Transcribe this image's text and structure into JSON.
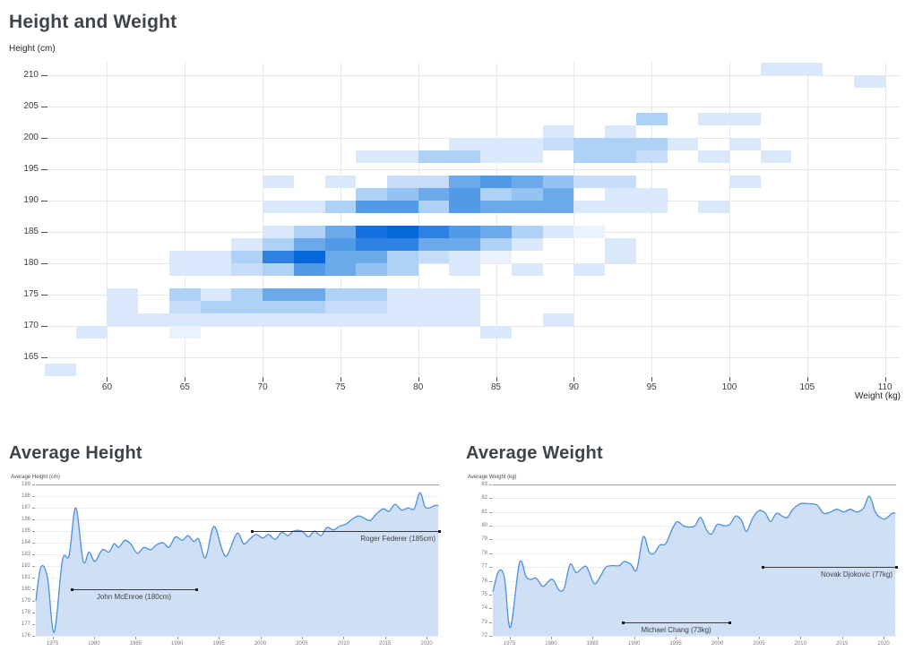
{
  "page_title": "Height and Weight",
  "accent_color": "#4a90e2",
  "chart_data": [
    {
      "type": "heatmap",
      "title": "Height and Weight",
      "xlabel": "Weight (kg)",
      "ylabel": "Height (cm)",
      "x_ticks": [
        60,
        65,
        70,
        75,
        80,
        85,
        90,
        95,
        100,
        105,
        110
      ],
      "y_ticks": [
        165,
        170,
        175,
        180,
        185,
        190,
        195,
        200,
        205,
        210
      ],
      "x_domain": [
        56,
        111
      ],
      "y_domain": [
        162,
        212
      ],
      "bin_size": {
        "weight_kg": 2,
        "height_cm": 2
      },
      "palette": {
        "0.5": "#e9f2fd",
        "1": "#d9e9fb",
        "1.5": "#c6dcf8",
        "2": "#aed2f5",
        "2.5": "#95c3f1",
        "3": "#6ca9ea",
        "3.5": "#519ae8",
        "4": "#2e80e2",
        "4.5": "#1371de",
        "5": "#0568da"
      },
      "cells": [
        [
          210,
          102,
          1
        ],
        [
          210,
          104,
          1
        ],
        [
          208,
          108,
          1
        ],
        [
          202,
          94,
          2
        ],
        [
          202,
          98,
          1
        ],
        [
          202,
          100,
          1
        ],
        [
          200,
          88,
          1
        ],
        [
          200,
          92,
          1
        ],
        [
          198,
          82,
          1
        ],
        [
          198,
          84,
          1
        ],
        [
          198,
          86,
          1
        ],
        [
          198,
          88,
          1.5
        ],
        [
          198,
          90,
          2
        ],
        [
          198,
          92,
          2
        ],
        [
          198,
          94,
          2
        ],
        [
          198,
          96,
          1
        ],
        [
          198,
          100,
          1
        ],
        [
          196,
          76,
          1
        ],
        [
          196,
          78,
          1
        ],
        [
          196,
          80,
          2
        ],
        [
          196,
          82,
          2
        ],
        [
          196,
          84,
          1
        ],
        [
          196,
          86,
          1
        ],
        [
          196,
          90,
          2
        ],
        [
          196,
          92,
          2
        ],
        [
          196,
          94,
          1.5
        ],
        [
          196,
          98,
          1
        ],
        [
          196,
          102,
          1
        ],
        [
          192,
          70,
          1
        ],
        [
          192,
          74,
          1
        ],
        [
          192,
          78,
          1.5
        ],
        [
          192,
          80,
          1.5
        ],
        [
          192,
          82,
          3
        ],
        [
          192,
          84,
          3.5
        ],
        [
          192,
          86,
          3
        ],
        [
          192,
          88,
          2.5
        ],
        [
          192,
          90,
          1.5
        ],
        [
          192,
          92,
          1.5
        ],
        [
          192,
          100,
          1
        ],
        [
          190,
          76,
          2
        ],
        [
          190,
          78,
          2.5
        ],
        [
          190,
          80,
          3
        ],
        [
          190,
          82,
          3.5
        ],
        [
          190,
          84,
          2
        ],
        [
          190,
          86,
          2.5
        ],
        [
          190,
          88,
          3
        ],
        [
          190,
          92,
          1
        ],
        [
          190,
          94,
          1
        ],
        [
          188,
          70,
          1
        ],
        [
          188,
          72,
          1
        ],
        [
          188,
          74,
          2
        ],
        [
          188,
          76,
          3.5
        ],
        [
          188,
          78,
          3.5
        ],
        [
          188,
          80,
          2
        ],
        [
          188,
          82,
          3.5
        ],
        [
          188,
          84,
          3
        ],
        [
          188,
          86,
          3
        ],
        [
          188,
          88,
          3
        ],
        [
          188,
          90,
          1
        ],
        [
          188,
          92,
          1
        ],
        [
          188,
          94,
          1
        ],
        [
          188,
          98,
          1
        ],
        [
          184,
          70,
          1
        ],
        [
          184,
          72,
          2
        ],
        [
          184,
          74,
          3
        ],
        [
          184,
          76,
          4.5
        ],
        [
          184,
          78,
          5
        ],
        [
          184,
          80,
          4
        ],
        [
          184,
          82,
          3.5
        ],
        [
          184,
          84,
          3
        ],
        [
          184,
          86,
          2
        ],
        [
          184,
          88,
          1
        ],
        [
          184,
          90,
          0.5
        ],
        [
          182,
          68,
          1
        ],
        [
          182,
          70,
          2
        ],
        [
          182,
          72,
          3
        ],
        [
          182,
          74,
          3.5
        ],
        [
          182,
          76,
          4
        ],
        [
          182,
          78,
          4
        ],
        [
          182,
          80,
          3
        ],
        [
          182,
          82,
          3
        ],
        [
          182,
          84,
          2
        ],
        [
          182,
          86,
          1
        ],
        [
          182,
          92,
          1
        ],
        [
          180,
          64,
          1
        ],
        [
          180,
          66,
          1
        ],
        [
          180,
          68,
          2
        ],
        [
          180,
          70,
          4
        ],
        [
          180,
          72,
          5
        ],
        [
          180,
          74,
          3
        ],
        [
          180,
          76,
          3
        ],
        [
          180,
          78,
          2
        ],
        [
          180,
          80,
          1.5
        ],
        [
          180,
          82,
          1
        ],
        [
          180,
          84,
          0.5
        ],
        [
          180,
          92,
          1
        ],
        [
          178,
          64,
          1
        ],
        [
          178,
          66,
          1
        ],
        [
          178,
          68,
          1.5
        ],
        [
          178,
          70,
          2
        ],
        [
          178,
          72,
          3.5
        ],
        [
          178,
          74,
          3
        ],
        [
          178,
          76,
          2.5
        ],
        [
          178,
          78,
          2
        ],
        [
          178,
          82,
          1
        ],
        [
          178,
          86,
          1
        ],
        [
          178,
          90,
          1
        ],
        [
          174,
          60,
          1
        ],
        [
          174,
          64,
          2
        ],
        [
          174,
          66,
          1
        ],
        [
          174,
          68,
          2
        ],
        [
          174,
          70,
          3
        ],
        [
          174,
          72,
          3
        ],
        [
          174,
          74,
          2
        ],
        [
          174,
          76,
          2
        ],
        [
          174,
          78,
          1
        ],
        [
          174,
          80,
          1
        ],
        [
          174,
          82,
          1
        ],
        [
          172,
          60,
          1
        ],
        [
          172,
          64,
          1.5
        ],
        [
          172,
          66,
          2
        ],
        [
          172,
          68,
          2
        ],
        [
          172,
          70,
          2
        ],
        [
          172,
          72,
          2
        ],
        [
          172,
          74,
          1.5
        ],
        [
          172,
          76,
          1.5
        ],
        [
          172,
          78,
          1
        ],
        [
          172,
          80,
          1
        ],
        [
          172,
          82,
          1
        ],
        [
          170,
          60,
          1
        ],
        [
          170,
          62,
          1
        ],
        [
          170,
          64,
          1
        ],
        [
          170,
          66,
          1
        ],
        [
          170,
          68,
          1
        ],
        [
          170,
          70,
          1
        ],
        [
          170,
          72,
          1
        ],
        [
          170,
          74,
          1
        ],
        [
          170,
          76,
          1
        ],
        [
          170,
          78,
          1
        ],
        [
          170,
          80,
          1
        ],
        [
          170,
          82,
          1
        ],
        [
          170,
          88,
          1
        ],
        [
          168,
          58,
          1
        ],
        [
          168,
          64,
          0.5
        ],
        [
          168,
          84,
          1
        ],
        [
          162,
          56,
          1
        ]
      ]
    },
    {
      "type": "area",
      "title": "Average Height",
      "ylabel": "Average Height (cm)",
      "y_ticks": [
        189,
        188,
        187,
        186,
        185,
        184,
        183,
        182,
        181,
        180,
        179,
        178,
        177,
        176
      ],
      "x_ticks": [
        1975,
        1980,
        1985,
        1990,
        1995,
        2000,
        2005,
        2010,
        2015,
        2020
      ],
      "y_domain": [
        176,
        189
      ],
      "x_domain": [
        1973,
        2021.5
      ],
      "line_color": "#4a90e2",
      "fill_color": "#cfe0f6",
      "series": [
        [
          1973,
          179.0
        ],
        [
          1973.6,
          181.9
        ],
        [
          1974.4,
          181.0
        ],
        [
          1975.2,
          176.3
        ],
        [
          1976.2,
          182.5
        ],
        [
          1977,
          182.9
        ],
        [
          1977.8,
          187.0
        ],
        [
          1978.7,
          182.4
        ],
        [
          1979.4,
          183.2
        ],
        [
          1980.1,
          182.4
        ],
        [
          1981,
          183.4
        ],
        [
          1981.8,
          183.2
        ],
        [
          1982.4,
          183.9
        ],
        [
          1983,
          183.6
        ],
        [
          1983.7,
          184.2
        ],
        [
          1984.4,
          183.9
        ],
        [
          1985.2,
          183.1
        ],
        [
          1986,
          183.6
        ],
        [
          1986.8,
          183.4
        ],
        [
          1987.5,
          183.8
        ],
        [
          1988.3,
          184.0
        ],
        [
          1989,
          183.6
        ],
        [
          1989.8,
          184.5
        ],
        [
          1990.6,
          184.2
        ],
        [
          1991.3,
          184.6
        ],
        [
          1992,
          184.1
        ],
        [
          1992.6,
          184.3
        ],
        [
          1993.4,
          182.7
        ],
        [
          1994.4,
          185.4
        ],
        [
          1995.4,
          183.4
        ],
        [
          1996,
          182.9
        ],
        [
          1997.2,
          184.8
        ],
        [
          1998,
          183.9
        ],
        [
          1998.7,
          184.3
        ],
        [
          1999.5,
          184.7
        ],
        [
          2000.3,
          184.4
        ],
        [
          2001,
          184.7
        ],
        [
          2001.8,
          184.3
        ],
        [
          2002.6,
          184.9
        ],
        [
          2003.3,
          184.6
        ],
        [
          2004,
          185.0
        ],
        [
          2005,
          185.0
        ],
        [
          2005.8,
          184.5
        ],
        [
          2006.5,
          185.0
        ],
        [
          2007.3,
          184.6
        ],
        [
          2008,
          185.3
        ],
        [
          2008.8,
          185.1
        ],
        [
          2009.5,
          185.4
        ],
        [
          2010.3,
          185.6
        ],
        [
          2011,
          186.0
        ],
        [
          2011.8,
          186.3
        ],
        [
          2012.5,
          186.1
        ],
        [
          2013.2,
          185.9
        ],
        [
          2014,
          186.5
        ],
        [
          2014.8,
          186.9
        ],
        [
          2015.5,
          186.7
        ],
        [
          2016.2,
          187.3
        ],
        [
          2017,
          186.8
        ],
        [
          2017.8,
          187.0
        ],
        [
          2018.5,
          186.9
        ],
        [
          2019.2,
          188.3
        ],
        [
          2019.8,
          187.1
        ],
        [
          2020.4,
          187.0
        ],
        [
          2021,
          187.2
        ],
        [
          2021.4,
          187.2
        ]
      ],
      "annotations": [
        {
          "label": "John McEnroe (180cm)",
          "value": 180,
          "start": 1977.3,
          "end": 1992.3,
          "label_align": "center"
        },
        {
          "label": "Roger Federer (185cm)",
          "value": 185,
          "start": 1999,
          "end": 2021.5,
          "label_align": "right"
        }
      ]
    },
    {
      "type": "area",
      "title": "Average Weight",
      "ylabel": "Average Weight (kg)",
      "y_ticks": [
        83,
        82,
        81,
        80,
        79,
        78,
        77,
        76,
        75,
        74,
        73,
        72
      ],
      "x_ticks": [
        1975,
        1980,
        1985,
        1990,
        1995,
        2000,
        2005,
        2010,
        2015,
        2020
      ],
      "y_domain": [
        72,
        83
      ],
      "x_domain": [
        1973,
        2021.5
      ],
      "line_color": "#4a90e2",
      "fill_color": "#cfe0f6",
      "series": [
        [
          1973,
          75.2
        ],
        [
          1973.7,
          76.7
        ],
        [
          1974.4,
          76.2
        ],
        [
          1975.1,
          72.6
        ],
        [
          1976.2,
          77.3
        ],
        [
          1977,
          76.3
        ],
        [
          1977.6,
          76.1
        ],
        [
          1978.2,
          76.2
        ],
        [
          1979,
          75.6
        ],
        [
          1979.6,
          75.9
        ],
        [
          1980.2,
          76.1
        ],
        [
          1981,
          75.3
        ],
        [
          1981.6,
          75.5
        ],
        [
          1982.3,
          77.2
        ],
        [
          1983,
          76.6
        ],
        [
          1983.7,
          76.9
        ],
        [
          1984.3,
          77.0
        ],
        [
          1985.2,
          75.8
        ],
        [
          1986,
          76.4
        ],
        [
          1986.6,
          77.0
        ],
        [
          1987.4,
          77.1
        ],
        [
          1988.2,
          77.1
        ],
        [
          1988.8,
          77.4
        ],
        [
          1989.6,
          77.2
        ],
        [
          1990.3,
          76.8
        ],
        [
          1991.1,
          79.2
        ],
        [
          1991.8,
          78.1
        ],
        [
          1992.4,
          78.0
        ],
        [
          1993.1,
          78.6
        ],
        [
          1993.8,
          78.7
        ],
        [
          1994.6,
          79.8
        ],
        [
          1995.2,
          80.3
        ],
        [
          1995.9,
          80.0
        ],
        [
          1996.6,
          79.9
        ],
        [
          1997.3,
          80.0
        ],
        [
          1998,
          80.6
        ],
        [
          1998.7,
          79.7
        ],
        [
          1999.3,
          79.4
        ],
        [
          2000,
          80.1
        ],
        [
          2000.8,
          80.0
        ],
        [
          2001.5,
          80.1
        ],
        [
          2002.2,
          80.7
        ],
        [
          2002.9,
          80.4
        ],
        [
          2003.5,
          79.6
        ],
        [
          2004.2,
          80.5
        ],
        [
          2005,
          81.1
        ],
        [
          2005.8,
          80.9
        ],
        [
          2006.4,
          80.3
        ],
        [
          2007.1,
          80.9
        ],
        [
          2007.8,
          80.7
        ],
        [
          2008.4,
          80.6
        ],
        [
          2009.1,
          81.2
        ],
        [
          2010,
          81.6
        ],
        [
          2011,
          81.6
        ],
        [
          2012,
          81.5
        ],
        [
          2012.8,
          80.9
        ],
        [
          2013.6,
          81.0
        ],
        [
          2014.4,
          81.2
        ],
        [
          2015.2,
          81.0
        ],
        [
          2016,
          81.2
        ],
        [
          2016.8,
          81.0
        ],
        [
          2017.6,
          81.3
        ],
        [
          2018.3,
          82.15
        ],
        [
          2019,
          81.0
        ],
        [
          2019.6,
          80.6
        ],
        [
          2020.2,
          80.5
        ],
        [
          2021,
          80.9
        ],
        [
          2021.4,
          80.9
        ]
      ],
      "annotations": [
        {
          "label": "Michael Chang (73kg)",
          "value": 73,
          "start": 1988.6,
          "end": 2001.5,
          "label_align": "center"
        },
        {
          "label": "Novak Djokovic (77kg)",
          "value": 77,
          "start": 2005.4,
          "end": 2021.5,
          "label_align": "right"
        }
      ]
    }
  ]
}
